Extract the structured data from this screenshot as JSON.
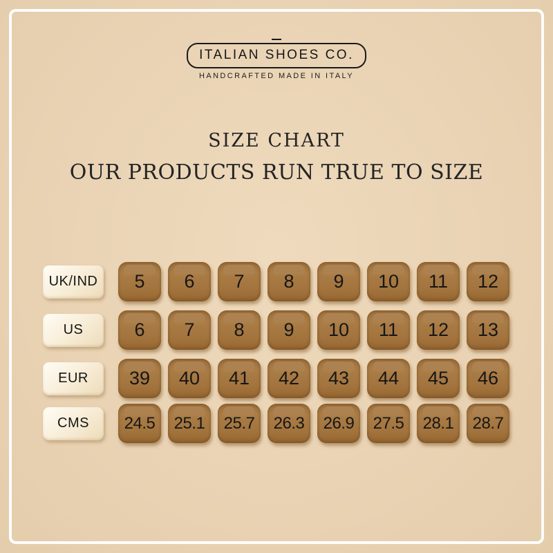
{
  "brand": {
    "name": "ITALIAN SHOES CO.",
    "tagline": "HANDCRAFTED MADE IN ITALY"
  },
  "heading": {
    "line1": "SIZE CHART",
    "line2": "OUR PRODUCTS RUN TRUE TO SIZE"
  },
  "chart_data": {
    "type": "table",
    "title": "SIZE CHART",
    "subtitle": "OUR PRODUCTS RUN TRUE TO SIZE",
    "rows": [
      {
        "label": "UK/IND",
        "values": [
          "5",
          "6",
          "7",
          "8",
          "9",
          "10",
          "11",
          "12"
        ]
      },
      {
        "label": "US",
        "values": [
          "6",
          "7",
          "8",
          "9",
          "10",
          "11",
          "12",
          "13"
        ]
      },
      {
        "label": "EUR",
        "values": [
          "39",
          "40",
          "41",
          "42",
          "43",
          "44",
          "45",
          "46"
        ]
      },
      {
        "label": "CMS",
        "values": [
          "24.5",
          "25.1",
          "25.7",
          "26.3",
          "26.9",
          "27.5",
          "28.1",
          "28.7"
        ]
      }
    ]
  },
  "colors": {
    "background": "#e9d3b4",
    "frame": "#fefefe",
    "size_button": "#a5763e",
    "label_chip": "#f9efdb",
    "text_dark": "#1c1c1c"
  }
}
